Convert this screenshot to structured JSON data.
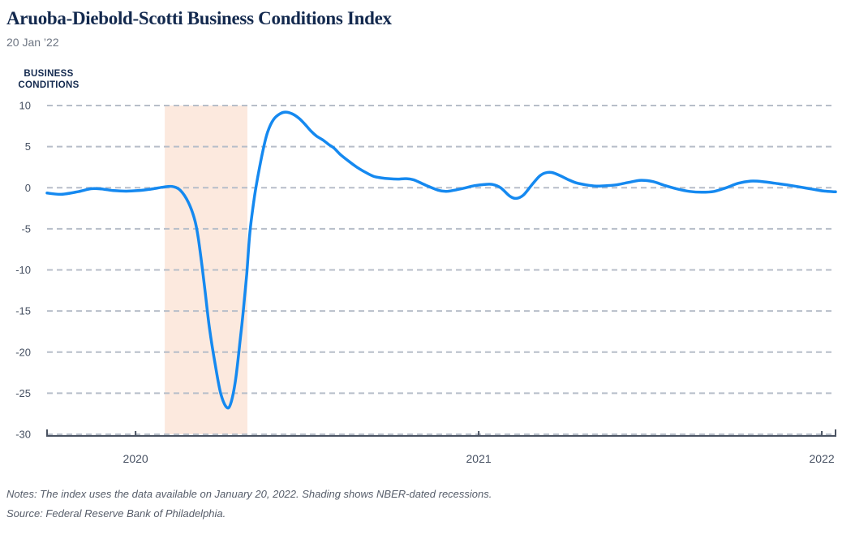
{
  "header": {
    "title": "Aruoba-Diebold-Scotti Business Conditions Index",
    "date": "20 Jan ’22"
  },
  "chart_data": {
    "type": "line",
    "title": "Aruoba-Diebold-Scotti Business Conditions Index",
    "as_of_date": "20 Jan ’22",
    "y_axis_label": "BUSINESS CONDITIONS",
    "xlabel": "",
    "ylabel": "BUSINESS CONDITIONS",
    "ylim": [
      -30,
      10
    ],
    "xlim": [
      2019.742,
      2022.04
    ],
    "y_ticks": [
      10,
      5,
      0,
      -5,
      -10,
      -15,
      -20,
      -25,
      -30
    ],
    "x_ticks": [
      {
        "value": 2020,
        "label": "2020"
      },
      {
        "value": 2021,
        "label": "2021"
      },
      {
        "value": 2022,
        "label": "2022"
      }
    ],
    "grid": "dashed-horizontal",
    "legend_position": "none",
    "recession_shading": [
      {
        "start": 2020.085,
        "end": 2020.326
      }
    ],
    "series": [
      {
        "name": "ADS Business Conditions Index",
        "color": "#1589f0",
        "points": [
          [
            2019.742,
            -0.65
          ],
          [
            2019.783,
            -0.8
          ],
          [
            2019.83,
            -0.5
          ],
          [
            2019.87,
            -0.12
          ],
          [
            2019.901,
            -0.15
          ],
          [
            2019.936,
            -0.35
          ],
          [
            2019.972,
            -0.42
          ],
          [
            2020.007,
            -0.35
          ],
          [
            2020.043,
            -0.18
          ],
          [
            2020.078,
            0.05
          ],
          [
            2020.106,
            0.15
          ],
          [
            2020.13,
            -0.3
          ],
          [
            2020.154,
            -1.8
          ],
          [
            2020.173,
            -4.0
          ],
          [
            2020.184,
            -6.5
          ],
          [
            2020.201,
            -12
          ],
          [
            2020.215,
            -17
          ],
          [
            2020.232,
            -21.5
          ],
          [
            2020.248,
            -25
          ],
          [
            2020.265,
            -26.7
          ],
          [
            2020.277,
            -26.3
          ],
          [
            2020.291,
            -23.5
          ],
          [
            2020.305,
            -18.5
          ],
          [
            2020.314,
            -15
          ],
          [
            2020.324,
            -10.5
          ],
          [
            2020.333,
            -5.5
          ],
          [
            2020.345,
            -1.5
          ],
          [
            2020.357,
            1.5
          ],
          [
            2020.371,
            4.5
          ],
          [
            2020.385,
            6.8
          ],
          [
            2020.402,
            8.3
          ],
          [
            2020.421,
            9.0
          ],
          [
            2020.437,
            9.2
          ],
          [
            2020.456,
            9.0
          ],
          [
            2020.475,
            8.5
          ],
          [
            2020.492,
            7.8
          ],
          [
            2020.511,
            6.9
          ],
          [
            2020.527,
            6.3
          ],
          [
            2020.546,
            5.8
          ],
          [
            2020.565,
            5.2
          ],
          [
            2020.579,
            4.8
          ],
          [
            2020.598,
            4.0
          ],
          [
            2020.622,
            3.2
          ],
          [
            2020.645,
            2.5
          ],
          [
            2020.669,
            1.9
          ],
          [
            2020.693,
            1.4
          ],
          [
            2020.716,
            1.2
          ],
          [
            2020.74,
            1.1
          ],
          [
            2020.764,
            1.05
          ],
          [
            2020.787,
            1.1
          ],
          [
            2020.811,
            0.95
          ],
          [
            2020.846,
            0.3
          ],
          [
            2020.882,
            -0.3
          ],
          [
            2020.905,
            -0.45
          ],
          [
            2020.929,
            -0.3
          ],
          [
            2020.957,
            -0.05
          ],
          [
            2020.988,
            0.25
          ],
          [
            2021.017,
            0.4
          ],
          [
            2021.04,
            0.4
          ],
          [
            2021.064,
            0.0
          ],
          [
            2021.09,
            -1.0
          ],
          [
            2021.109,
            -1.3
          ],
          [
            2021.13,
            -0.9
          ],
          [
            2021.154,
            0.3
          ],
          [
            2021.177,
            1.4
          ],
          [
            2021.194,
            1.8
          ],
          [
            2021.213,
            1.85
          ],
          [
            2021.236,
            1.5
          ],
          [
            2021.26,
            1.0
          ],
          [
            2021.284,
            0.6
          ],
          [
            2021.312,
            0.35
          ],
          [
            2021.343,
            0.2
          ],
          [
            2021.373,
            0.25
          ],
          [
            2021.402,
            0.35
          ],
          [
            2021.437,
            0.65
          ],
          [
            2021.473,
            0.9
          ],
          [
            2021.508,
            0.75
          ],
          [
            2021.544,
            0.25
          ],
          [
            2021.579,
            -0.15
          ],
          [
            2021.615,
            -0.45
          ],
          [
            2021.65,
            -0.55
          ],
          [
            2021.686,
            -0.45
          ],
          [
            2021.721,
            0.0
          ],
          [
            2021.757,
            0.55
          ],
          [
            2021.792,
            0.8
          ],
          [
            2021.827,
            0.75
          ],
          [
            2021.863,
            0.55
          ],
          [
            2021.898,
            0.35
          ],
          [
            2021.934,
            0.1
          ],
          [
            2021.969,
            -0.15
          ],
          [
            2022.005,
            -0.4
          ],
          [
            2022.04,
            -0.5
          ]
        ]
      }
    ]
  },
  "colors": {
    "line": "#1589f0",
    "recession_shading": "#fce9de",
    "gridline": "#b7bec9",
    "axis": "#4a5362",
    "title": "#13294e",
    "tick_text": "#465062",
    "notes_text": "#565d6a"
  },
  "notes": {
    "notes_line": "Notes: The index uses the data available on January 20, 2022. Shading shows NBER-dated recessions.",
    "source_line": "Source: Federal Reserve Bank of Philadelphia."
  }
}
